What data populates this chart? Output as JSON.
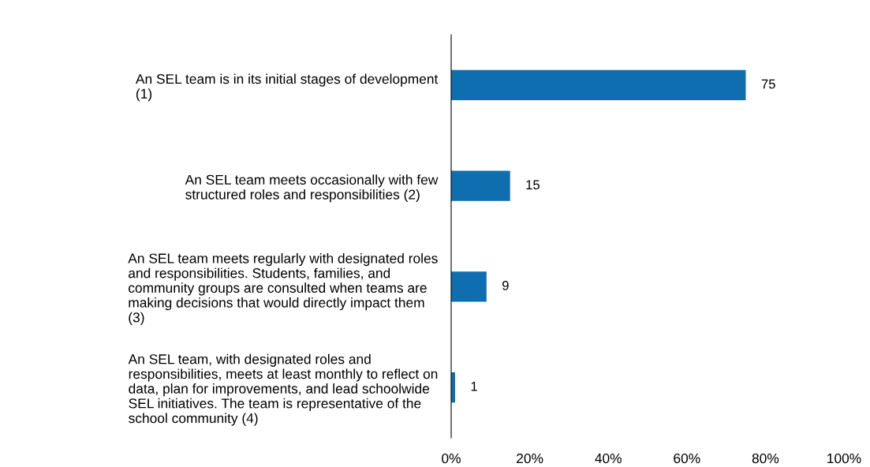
{
  "chart_data": {
    "type": "bar",
    "orientation": "horizontal",
    "categories": [
      "An SEL team is in its initial stages of development\n(1)",
      "An SEL team meets occasionally with few\nstructured roles and responsibilities (2)",
      "An SEL team meets regularly with designated roles\nand responsibilities. Students, families, and\ncommunity groups are consulted when teams are\nmaking decisions that would directly impact them\n(3)",
      "An SEL team, with designated roles and\nresponsibilities, meets at least monthly to reflect on\ndata, plan for improvements, and lead schoolwide\nSEL initiatives. The team is representative of the\nschool community (4)"
    ],
    "values": [
      75,
      15,
      9,
      1
    ],
    "color": "#0f6eb0",
    "xlim": [
      0,
      100
    ],
    "xticks": [
      {
        "value": 0,
        "label": "0%"
      },
      {
        "value": 20,
        "label": "20%"
      },
      {
        "value": 40,
        "label": "40%"
      },
      {
        "value": 60,
        "label": "60%"
      },
      {
        "value": 80,
        "label": "80%"
      },
      {
        "value": 100,
        "label": "100%"
      }
    ],
    "data_labels": true,
    "grid": false,
    "legend": false
  }
}
